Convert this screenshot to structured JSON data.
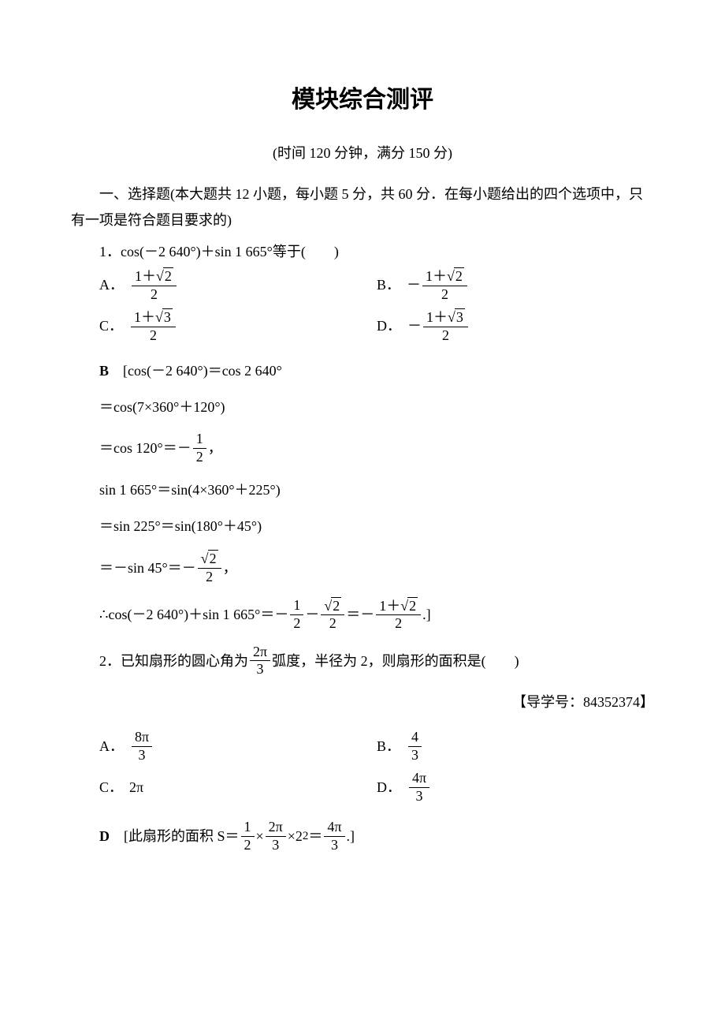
{
  "title": "模块综合测评",
  "subtitle": "(时间 120 分钟，满分 150 分)",
  "section1_intro": "一、选择题(本大题共 12 小题，每小题 5 分，共 60 分．在每小题给出的四个选项中，只有一项是符合题目要求的)",
  "q1": {
    "stem_pre": "1．cos(－2 640°)＋sin 1 665°等于(　　)",
    "A_label": "A．",
    "B_label": "B．",
    "C_label": "C．",
    "D_label": "D．",
    "sqrt2": "2",
    "sqrt3": "3",
    "num_prefix": "1＋",
    "den2": "2",
    "neg": "－",
    "answer_letter": "B",
    "sol_l1_a": "[cos(－2 640°)＝cos 2 640°",
    "sol_l2": "＝cos(7×360°＋120°)",
    "sol_l3_a": "＝cos 120°＝－",
    "sol_l3_b": "，",
    "half_num": "1",
    "half_den": "2",
    "sol_l4": "sin 1 665°＝sin(4×360°＋225°)",
    "sol_l5": "＝sin 225°＝sin(180°＋45°)",
    "sol_l6_a": "＝－sin 45°＝－",
    "sol_l6_b": "，",
    "sqrt2_den2_num_sqrt": "2",
    "sqrt2_den2_den": "2",
    "sol_l7_a": "∴cos(－2 640°)＋sin 1 665°＝－",
    "sol_l7_b": "－",
    "sol_l7_c": "＝－",
    "sol_l7_d": ".]"
  },
  "q2": {
    "stem_a": "2．已知扇形的圆心角为",
    "stem_frac_num": "2π",
    "stem_frac_den": "3",
    "stem_b": "弧度，半径为 2，则扇形的面积是(　　)",
    "tag": "【导学号：84352374】",
    "A_label": "A．",
    "A_num": "8π",
    "A_den": "3",
    "B_label": "B．",
    "B_num": "4",
    "B_den": "3",
    "C_label": "C．",
    "C_text": "2π",
    "D_label": "D．",
    "D_num": "4π",
    "D_den": "3",
    "answer_letter": "D",
    "sol_a": "[此扇形的面积 S＝",
    "sol_f1_num": "1",
    "sol_f1_den": "2",
    "sol_b": "×",
    "sol_f2_num": "2π",
    "sol_f2_den": "3",
    "sol_c": "×2",
    "sol_sup": "2",
    "sol_d": "＝",
    "sol_f3_num": "4π",
    "sol_f3_den": "3",
    "sol_e": ".]"
  }
}
